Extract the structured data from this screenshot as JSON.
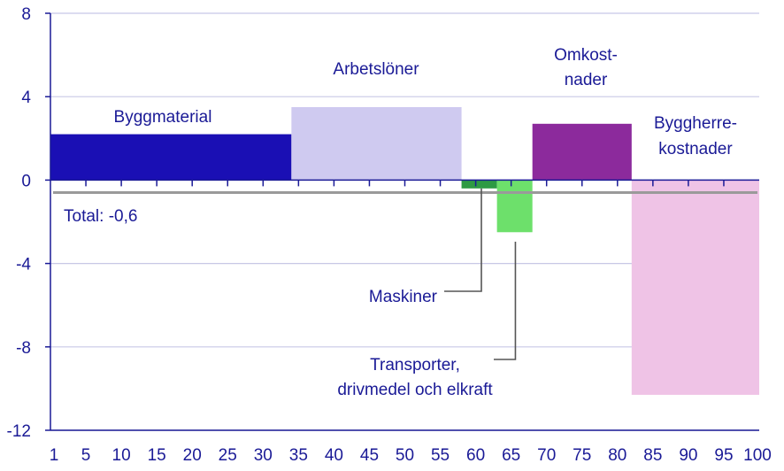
{
  "chart_data": {
    "type": "bar",
    "subtype": "variable-width",
    "title": "",
    "xlabel": "",
    "ylabel": "",
    "xlim": [
      0,
      100
    ],
    "ylim": [
      -12,
      8
    ],
    "y_ticks": [
      8,
      4,
      0,
      -4,
      -8,
      -12
    ],
    "y_tick_labels": [
      "8",
      "4",
      "0",
      "-4",
      "-8",
      "-12"
    ],
    "x_ticks": [
      1,
      5,
      10,
      15,
      20,
      25,
      30,
      35,
      40,
      45,
      50,
      55,
      60,
      65,
      70,
      75,
      80,
      85,
      90,
      95,
      100
    ],
    "x_tick_labels": [
      "1",
      "5",
      "10",
      "15",
      "20",
      "25",
      "30",
      "35",
      "40",
      "45",
      "50",
      "55",
      "60",
      "65",
      "70",
      "75",
      "80",
      "85",
      "90",
      "95",
      "100"
    ],
    "grid": "horizontal",
    "series": [
      {
        "name": "Byggmaterial",
        "x_start": 0,
        "x_end": 34,
        "value": 2.2,
        "color": "#1a0fb4"
      },
      {
        "name": "Arbetslöner",
        "x_start": 34,
        "x_end": 58,
        "value": 3.5,
        "color": "#cfcaf0"
      },
      {
        "name": "Maskiner",
        "x_start": 58,
        "x_end": 63,
        "value": -0.4,
        "color": "#2e9a44"
      },
      {
        "name": "Transporter, drivmedel och elkraft",
        "x_start": 63,
        "x_end": 68,
        "value": -2.5,
        "color": "#6de06b"
      },
      {
        "name": "Omkostnader",
        "x_start": 68,
        "x_end": 82,
        "value": 2.7,
        "color": "#8c2a9c"
      },
      {
        "name": "Byggherrekostnader",
        "x_start": 82,
        "x_end": 100,
        "value": -10.3,
        "color": "#efc3e6"
      }
    ],
    "total": {
      "value": -0.6,
      "label": "Total: -0,6",
      "color": "#9a9a9a"
    }
  },
  "labels": {
    "byggmaterial": "Byggmaterial",
    "arbetsloner": "Arbetslöner",
    "omkost_line1": "Omkost-",
    "omkost_line2": "nader",
    "byggherre_line1": "Byggherre-",
    "byggherre_line2": "kostnader",
    "maskiner": "Maskiner",
    "transport_line1": "Transporter,",
    "transport_line2": "drivmedel och elkraft",
    "total": "Total: -0,6"
  },
  "colors": {
    "axis": "#1a1a96",
    "grid": "#c8c8e6",
    "connector": "#555555",
    "text": "#1a1a96"
  }
}
